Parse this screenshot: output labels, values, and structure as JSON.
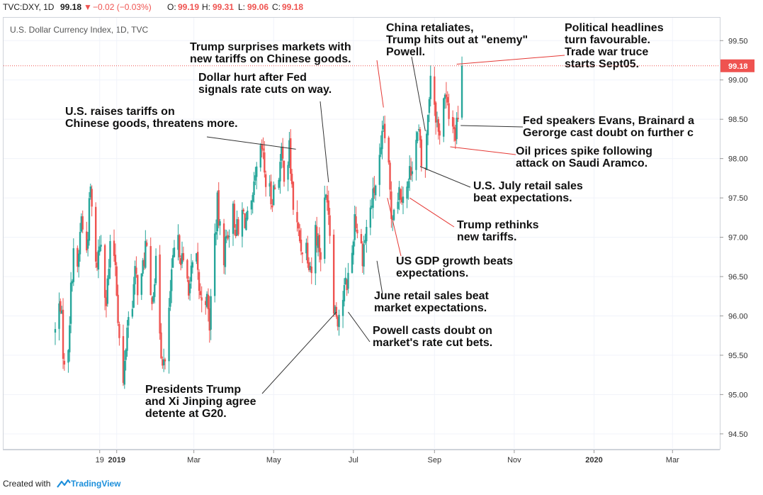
{
  "header": {
    "symbol": "TVC:DXY, 1D",
    "last": "99.18",
    "change": "−0.02 (−0.03%)",
    "open_label": "O:",
    "open": "99.19",
    "high_label": "H:",
    "high": "99.31",
    "low_label": "L:",
    "low": "99.06",
    "close_label": "C:",
    "close": "99.18"
  },
  "footer": {
    "created": "Created with",
    "brand": "TradingView"
  },
  "colors": {
    "up": "#26a69a",
    "down": "#ef5350",
    "annotation_red": "#e53935",
    "annotation_black": "#333333",
    "price_tag": "#ef5350"
  },
  "chart_data": {
    "type": "candlestick",
    "title": "U.S. Dollar Currency Index, 1D, TVC",
    "ylim": [
      94.3,
      99.8
    ],
    "y_ticks": [
      "99.50",
      "99.00",
      "98.50",
      "98.00",
      "97.50",
      "97.00",
      "96.50",
      "96.00",
      "95.50",
      "95.00",
      "94.50"
    ],
    "x_ticks": [
      {
        "label": "19",
        "day": -193
      },
      {
        "label": "2019",
        "day": -180
      },
      {
        "label": "Mar",
        "day": -121
      },
      {
        "label": "May",
        "day": -60
      },
      {
        "label": "Jul",
        "day": 1
      },
      {
        "label": "Sep",
        "day": 63
      },
      {
        "label": "Nov",
        "day": 124
      },
      {
        "label": "2020",
        "day": 185
      },
      {
        "label": "Mar",
        "day": 245
      }
    ],
    "last_price": "99.18",
    "last_price_value": 99.18,
    "path": [
      [
        -227,
        95.8
      ],
      [
        -223,
        96.2
      ],
      [
        -219,
        95.0
      ],
      [
        -216,
        96.0
      ],
      [
        -213,
        96.9
      ],
      [
        -210,
        96.5
      ],
      [
        -207,
        97.3
      ],
      [
        -204,
        96.6
      ],
      [
        -200,
        97.6
      ],
      [
        -196,
        96.6
      ],
      [
        -192,
        97.0
      ],
      [
        -188,
        96.2
      ],
      [
        -184,
        97.0
      ],
      [
        -181,
        96.7
      ],
      [
        -178,
        95.7
      ],
      [
        -175,
        95.1
      ],
      [
        -172,
        95.9
      ],
      [
        -169,
        96.1
      ],
      [
        -166,
        96.5
      ],
      [
        -162,
        96.3
      ],
      [
        -158,
        96.9
      ],
      [
        -154,
        96.2
      ],
      [
        -150,
        96.6
      ],
      [
        -146,
        95.6
      ],
      [
        -143,
        95.3
      ],
      [
        -140,
        96.1
      ],
      [
        -136,
        96.8
      ],
      [
        -132,
        96.9
      ],
      [
        -128,
        96.5
      ],
      [
        -124,
        96.4
      ],
      [
        -120,
        96.8
      ],
      [
        -116,
        96.2
      ],
      [
        -113,
        96.4
      ],
      [
        -109,
        95.9
      ],
      [
        -106,
        96.8
      ],
      [
        -103,
        97.4
      ],
      [
        -99,
        96.7
      ],
      [
        -95,
        97.1
      ],
      [
        -91,
        97.3
      ],
      [
        -87,
        97.0
      ],
      [
        -84,
        97.3
      ],
      [
        -80,
        97.2
      ],
      [
        -77,
        97.3
      ],
      [
        -73,
        97.8
      ],
      [
        -69,
        98.1
      ],
      [
        -66,
        97.7
      ],
      [
        -62,
        97.5
      ],
      [
        -58,
        97.7
      ],
      [
        -54,
        98.0
      ],
      [
        -51,
        97.8
      ],
      [
        -48,
        98.1
      ],
      [
        -45,
        97.4
      ],
      [
        -42,
        97.1
      ],
      [
        -39,
        96.9
      ],
      [
        -35,
        96.9
      ],
      [
        -31,
        96.6
      ],
      [
        -28,
        97.1
      ],
      [
        -24,
        96.8
      ],
      [
        -21,
        97.4
      ],
      [
        -19,
        97.6
      ],
      [
        -17,
        97.1
      ],
      [
        -15,
        96.3
      ],
      [
        -13,
        96.1
      ],
      [
        -11,
        96.0
      ],
      [
        -9,
        96.1
      ],
      [
        -6,
        96.3
      ],
      [
        -3,
        96.5
      ],
      [
        0,
        96.8
      ],
      [
        2,
        97.3
      ],
      [
        5,
        97.0
      ],
      [
        8,
        96.8
      ],
      [
        10,
        97.0
      ],
      [
        13,
        97.3
      ],
      [
        16,
        97.5
      ],
      [
        19,
        97.8
      ],
      [
        22,
        98.0
      ],
      [
        24,
        98.4
      ],
      [
        26,
        98.2
      ],
      [
        28,
        97.8
      ],
      [
        30,
        97.3
      ],
      [
        33,
        97.5
      ],
      [
        36,
        97.6
      ],
      [
        39,
        97.6
      ],
      [
        42,
        97.6
      ],
      [
        45,
        97.9
      ],
      [
        48,
        98.2
      ],
      [
        51,
        98.3
      ],
      [
        54,
        97.7
      ],
      [
        56,
        97.9
      ],
      [
        58,
        98.6
      ],
      [
        60,
        99.1
      ],
      [
        62,
        98.9
      ],
      [
        64,
        98.6
      ],
      [
        66,
        98.3
      ],
      [
        68,
        98.5
      ],
      [
        70,
        98.8
      ],
      [
        72,
        98.7
      ],
      [
        75,
        98.4
      ],
      [
        77,
        98.5
      ],
      [
        79,
        98.3
      ],
      [
        81,
        98.6
      ],
      [
        83,
        98.9
      ],
      [
        84,
        99.2
      ]
    ],
    "annotations": [
      {
        "text": [
          "U.S. raises tariffs on",
          "Chinese goods, threatens more."
        ],
        "color": "black",
        "target_day": -43,
        "target_price": 98.12
      },
      {
        "text": [
          "Dollar hurt after Fed",
          "signals rate cuts on way."
        ],
        "color": "black",
        "target_day": -18,
        "target_price": 97.7
      },
      {
        "text": [
          "Trump surprises markets with",
          "new tariffs on Chinese goods."
        ],
        "color": "red",
        "target_day": 24,
        "target_price": 98.65
      },
      {
        "text": [
          "China retaliates,",
          "Trump hits out at \"enemy\"",
          "Powell."
        ],
        "color": "black",
        "target_day": 56,
        "target_price": 98.35
      },
      {
        "text": [
          "Political headlines",
          "turn favourable.",
          "Trade war truce",
          "starts Sept05."
        ],
        "color": "red",
        "target_day": 80,
        "target_price": 99.2
      },
      {
        "text": [
          "Fed speakers Evans, Brainard a",
          "Gerorge cast doubt on further c"
        ],
        "color": "black",
        "target_day": 83,
        "target_price": 98.42
      },
      {
        "text": [
          "Oil prices spike following",
          "attack on Saudi Aramco."
        ],
        "color": "red",
        "target_day": 75,
        "target_price": 98.15
      },
      {
        "text": [
          "U.S. July retail sales",
          "beat expectations."
        ],
        "color": "black",
        "target_day": 52,
        "target_price": 97.9
      },
      {
        "text": [
          "Trump rethinks",
          "new tariffs."
        ],
        "color": "red",
        "target_day": 44,
        "target_price": 97.5
      },
      {
        "text": [
          "US GDP growth beats",
          "expectations."
        ],
        "color": "red",
        "target_day": 27,
        "target_price": 97.5
      },
      {
        "text": [
          "June retail sales beat",
          "market expectations."
        ],
        "color": "black",
        "target_day": 19,
        "target_price": 96.7
      },
      {
        "text": [
          "Powell casts doubt on",
          "market's rate cut bets."
        ],
        "color": "black",
        "target_day": -3,
        "target_price": 96.05
      },
      {
        "text": [
          "Presidents Trump",
          "and Xi Jinping agree",
          "detente at G20."
        ],
        "color": "black",
        "target_day": -12,
        "target_price": 96.05
      }
    ]
  }
}
